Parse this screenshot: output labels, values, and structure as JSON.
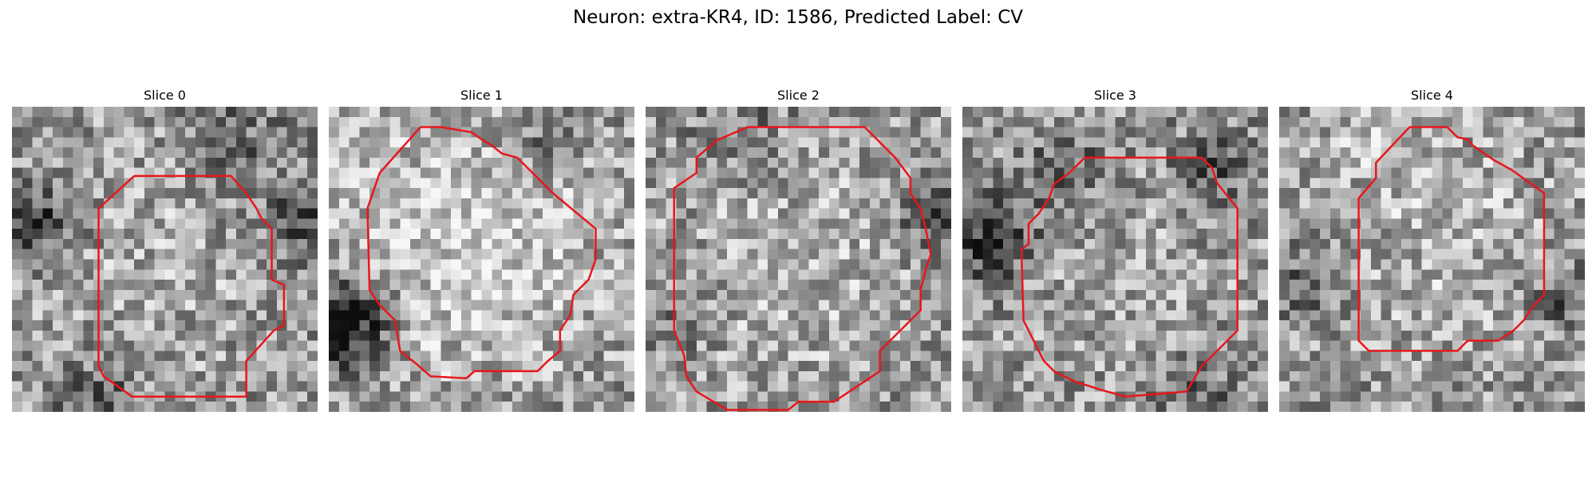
{
  "figure": {
    "title": "Neuron: extra-KR4, ID: 1586, Predicted Label: CV",
    "outline_color": "#e8161b",
    "colormap": "gray"
  },
  "slices": [
    {
      "title": "Slice 0",
      "image": "slice-0-image",
      "outline": "slice-0-roi-outline"
    },
    {
      "title": "Slice 1",
      "image": "slice-1-image",
      "outline": "slice-1-roi-outline"
    },
    {
      "title": "Slice 2",
      "image": "slice-2-image",
      "outline": "slice-2-roi-outline"
    },
    {
      "title": "Slice 3",
      "image": "slice-3-image",
      "outline": "slice-3-roi-outline"
    },
    {
      "title": "Slice 4",
      "image": "slice-4-image",
      "outline": "slice-4-roi-outline"
    }
  ]
}
